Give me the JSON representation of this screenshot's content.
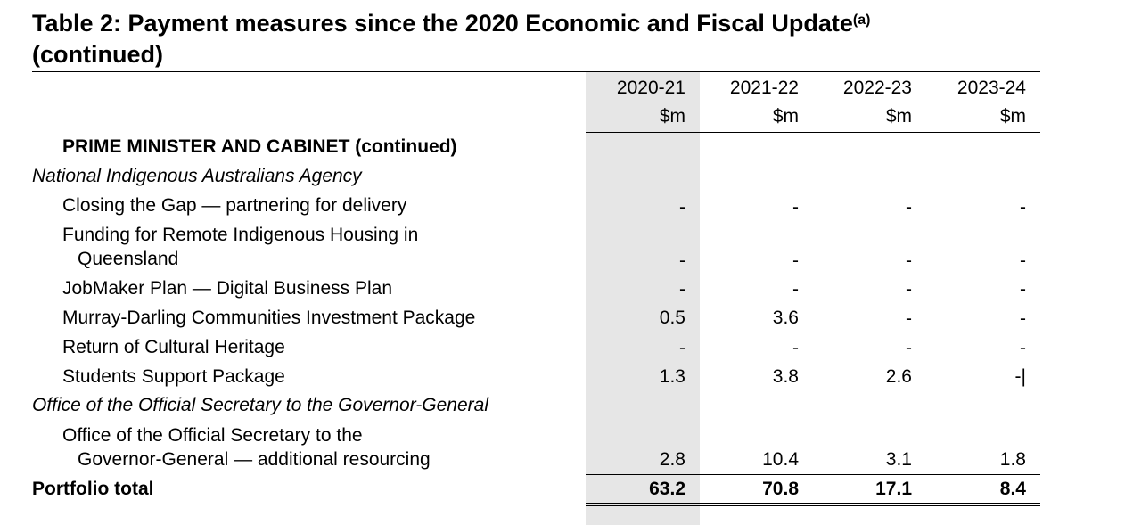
{
  "title": {
    "main": "Table 2: Payment measures since the 2020 Economic and Fiscal Update",
    "footnote": "(a)",
    "continued": "(continued)"
  },
  "columns": [
    {
      "year": "2020-21",
      "unit": "$m"
    },
    {
      "year": "2021-22",
      "unit": "$m"
    },
    {
      "year": "2022-23",
      "unit": "$m"
    },
    {
      "year": "2023-24",
      "unit": "$m"
    }
  ],
  "section_heading": "PRIME MINISTER AND CABINET (continued)",
  "agencies": [
    {
      "name": "National Indigenous Australians Agency",
      "rows": [
        {
          "label": "Closing the Gap — partnering for delivery",
          "values": [
            "-",
            "-",
            "-",
            "-"
          ]
        },
        {
          "label": "Funding for Remote Indigenous Housing in",
          "label_cont": "Queensland",
          "values": [
            "-",
            "-",
            "-",
            "-"
          ]
        },
        {
          "label": "JobMaker Plan — Digital Business Plan",
          "values": [
            "-",
            "-",
            "-",
            "-"
          ]
        },
        {
          "label": "Murray-Darling Communities Investment Package",
          "values": [
            "0.5",
            "3.6",
            "-",
            "-"
          ]
        },
        {
          "label": "Return of Cultural Heritage",
          "values": [
            "-",
            "-",
            "-",
            "-"
          ]
        },
        {
          "label": "Students Support Package",
          "values": [
            "1.3",
            "3.8",
            "2.6",
            "-|"
          ]
        }
      ]
    },
    {
      "name": "Office of the Official Secretary to the Governor-General",
      "rows": [
        {
          "label": "Office of the Official Secretary to the",
          "label_cont": "Governor-General — additional resourcing",
          "values": [
            "2.8",
            "10.4",
            "3.1",
            "1.8"
          ]
        }
      ]
    }
  ],
  "total": {
    "label": "Portfolio total",
    "values": [
      "63.2",
      "70.8",
      "17.1",
      "8.4"
    ]
  }
}
